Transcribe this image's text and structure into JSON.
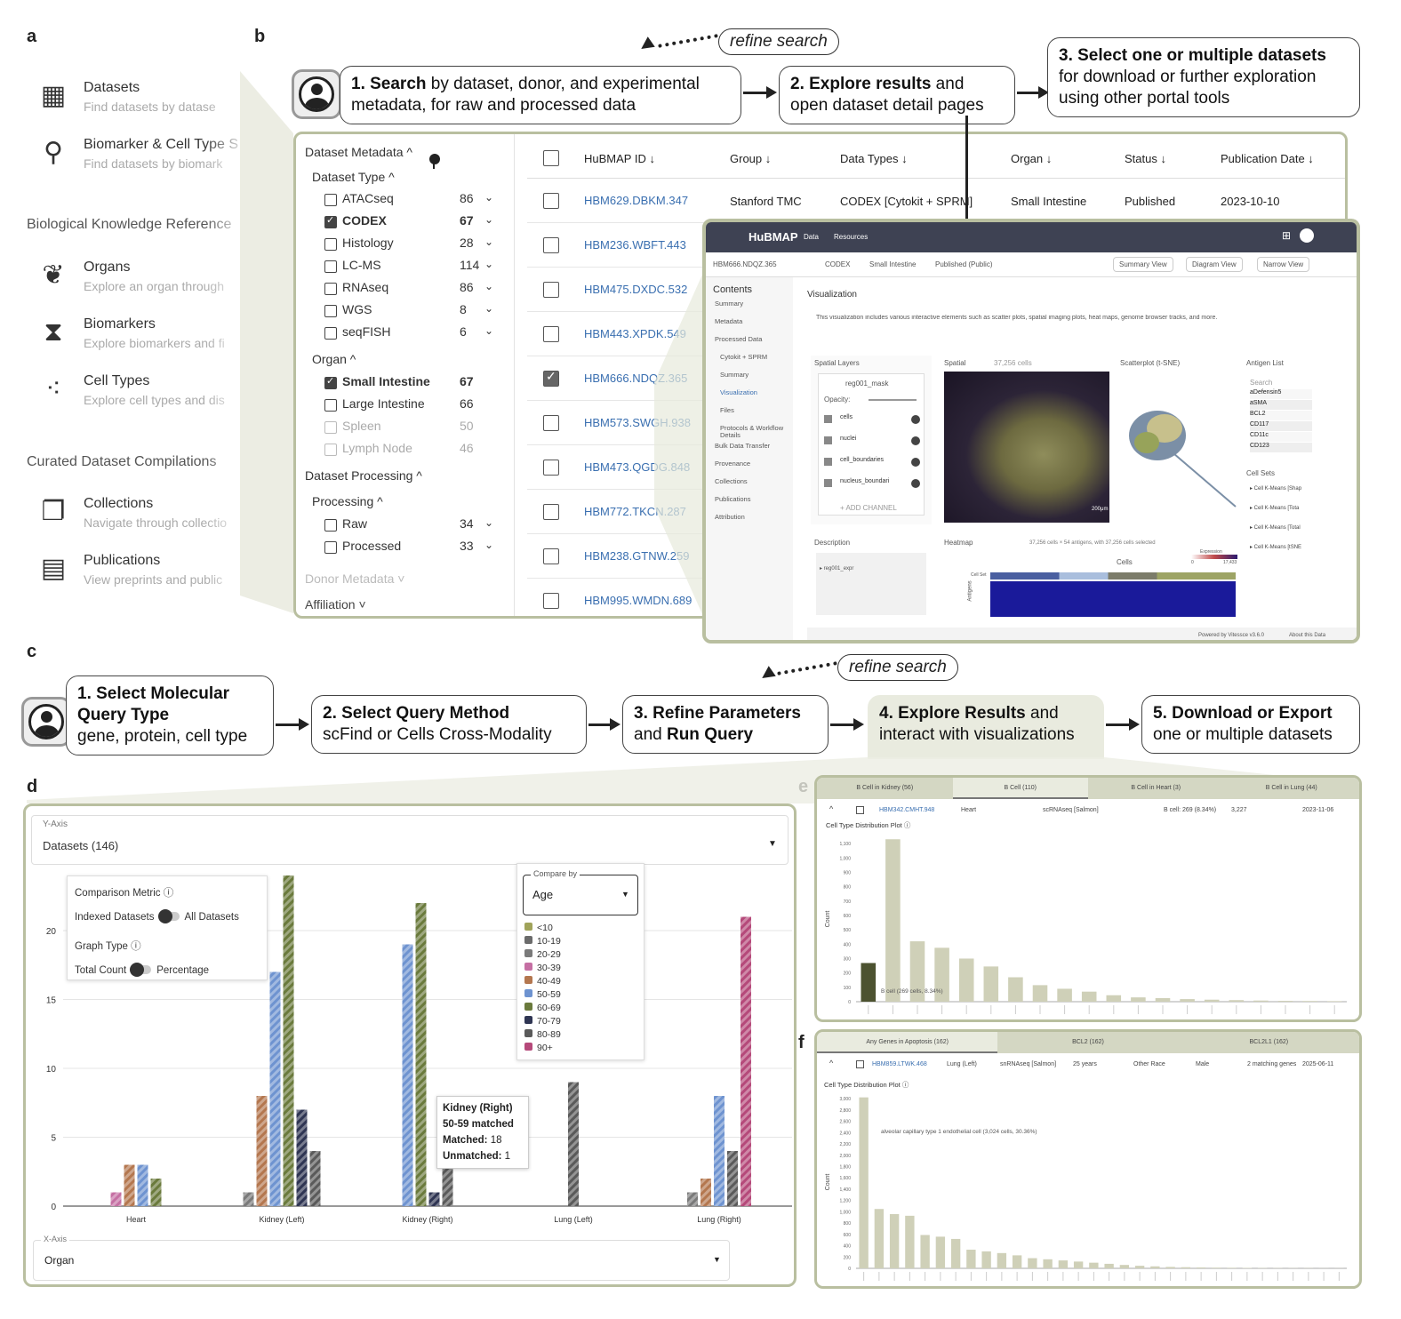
{
  "panels": {
    "a": "a",
    "b": "b",
    "c": "c",
    "d": "d",
    "e": "e",
    "f": "f"
  },
  "panel_a": {
    "items": [
      {
        "icon": "table-icon",
        "title": "Datasets",
        "sub": "Find datasets by datase"
      },
      {
        "icon": "search-icon",
        "title": "Biomarker & Cell Type S",
        "sub": "Find datasets by biomark"
      },
      {
        "icon": "kidney-icon",
        "title": "Organs",
        "sub": "Explore an organ through"
      },
      {
        "icon": "dna-icon",
        "title": "Biomarkers",
        "sub": "Explore biomarkers and fi"
      },
      {
        "icon": "cells-icon",
        "title": "Cell Types",
        "sub": "Explore cell types and dis"
      },
      {
        "icon": "collection-icon",
        "title": "Collections",
        "sub": "Navigate through collectio"
      },
      {
        "icon": "document-icon",
        "title": "Publications",
        "sub": "View preprints and public"
      }
    ],
    "sections": [
      "Biological Knowledge Reference",
      "Curated Dataset Compilations"
    ]
  },
  "flow_b": {
    "step1_bold": "1. Search",
    "step1_rest": " by dataset, donor, and experimental metadata, for raw and processed data",
    "step2_bold": "2. Explore results",
    "step2_rest": " and open dataset detail pages",
    "step3_bold": "3. Select one or multiple datasets",
    "step3_rest": "for download or further exploration using other portal tools",
    "refine": "refine search"
  },
  "facets": {
    "dataset_metadata": "Dataset Metadata ^",
    "dataset_type": "Dataset Type ^",
    "types": [
      {
        "label": "ATACseq",
        "count": "86",
        "checked": false
      },
      {
        "label": "CODEX",
        "count": "67",
        "checked": true
      },
      {
        "label": "Histology",
        "count": "28",
        "checked": false
      },
      {
        "label": "LC-MS",
        "count": "114",
        "checked": false
      },
      {
        "label": "RNAseq",
        "count": "86",
        "checked": false
      },
      {
        "label": "WGS",
        "count": "8",
        "checked": false
      },
      {
        "label": "seqFISH",
        "count": "6",
        "checked": false
      }
    ],
    "organ": "Organ ^",
    "organs": [
      {
        "label": "Small Intestine",
        "count": "67",
        "checked": true
      },
      {
        "label": "Large Intestine",
        "count": "66",
        "checked": false
      },
      {
        "label": "Spleen",
        "count": "50",
        "checked": false
      },
      {
        "label": "Lymph Node",
        "count": "46",
        "checked": false
      }
    ],
    "dataset_processing": "Dataset Processing ^",
    "processing": "Processing ^",
    "proc": [
      {
        "label": "Raw",
        "count": "34"
      },
      {
        "label": "Processed",
        "count": "33"
      }
    ],
    "donor": "Donor Metadata ˅",
    "affiliation": "Affiliation ˅"
  },
  "table": {
    "headers": [
      "HuBMAP ID ↓",
      "Group ↓",
      "Data Types ↓",
      "Organ ↓",
      "Status ↓",
      "Publication Date ↓"
    ],
    "first_row": [
      "HBM629.DBKM.347",
      "Stanford TMC",
      "CODEX [Cytokit + SPRM]",
      "Small Intestine",
      "Published",
      "2023-10-10"
    ],
    "ids": [
      "HBM629.DBKM.347",
      "HBM236.WBFT.443",
      "HBM475.DXDC.532",
      "HBM443.XPDK.549",
      "HBM666.NDQZ.365",
      "HBM573.SWGH.938",
      "HBM473.QGDG.848",
      "HBM772.TKCN.287",
      "HBM238.GTNW.259",
      "HBM995.WMDN.689"
    ],
    "checked_row": 4
  },
  "detail": {
    "brand": "HuBMAP",
    "nav": [
      "Data",
      "Resources"
    ],
    "id": "HBM666.NDQZ.365",
    "chips": [
      "CODEX",
      "Small Intestine",
      "Published (Public)"
    ],
    "views": [
      "Summary View",
      "Diagram View",
      "Narrow View"
    ],
    "contents": "Contents",
    "toc": [
      "Summary",
      "Metadata",
      "Processed Data",
      "Cytokit + SPRM",
      "Summary",
      "Visualization",
      "Files",
      "Protocols & Workflow Details",
      "Bulk Data Transfer",
      "Provenance",
      "Collections",
      "Publications",
      "Attribution"
    ],
    "vis_title": "Visualization",
    "vis_desc": "This visualization includes various interactive elements such as scatter plots, spatial imaging plots, heat maps, genome browser tracks, and more.",
    "spatial_layers": "Spatial Layers",
    "layer": "reg001_mask",
    "opacity": "Opacity:",
    "channels": [
      "cells",
      "nuclei",
      "cell_boundaries",
      "nucleus_boundari"
    ],
    "add_channel": "+ ADD CHANNEL",
    "spatial": "Spatial",
    "spatial_cells": "37,256 cells",
    "scatter": "Scatterplot (t-SNE)",
    "antigen": "Antigen List",
    "search": "Search",
    "antigens": [
      "aDefensin5",
      "aSMA",
      "BCL2",
      "CD117",
      "CD11c",
      "CD123"
    ],
    "cell_sets": "Cell Sets",
    "cell_set_items": [
      "Cell K-Means [Shap",
      "Cell K-Means [Tota",
      "Cell K-Means [Total",
      "Cell K-Means [tSNE"
    ],
    "description": "Description",
    "desc_item": "▸ reg001_expr",
    "heatmap": "Heatmap",
    "heatmap_info": "37,256 cells × 54 antigens, with 37,256 cells selected",
    "cells_label": "Cells",
    "antigens_label": "Antigens",
    "expression": "Expression",
    "expr_min": "0",
    "expr_max": "17,433",
    "cellset_label": "Cell Set",
    "scale": "200μm",
    "footer": "Powered by Vitessce v3.6.0",
    "about": "About this Data"
  },
  "flow_c": {
    "s1_bold": "1. Select Molecular Query Type",
    "s1_rest": "gene, protein, cell type",
    "s2_bold": "2. Select Query Method",
    "s2_rest": "scFind or Cells Cross-Modality",
    "s3_bold_a": "3. Refine Parameters",
    "s3_rest": "and ",
    "s3_bold_b": "Run Query",
    "s4_bold": "4. Explore Results",
    "s4_rest": " and interact with visualizations",
    "s5_bold": "5. Download or Export",
    "s5_rest": "one or multiple datasets",
    "refine": "refine search"
  },
  "panel_d": {
    "y_axis_label": "Y-Axis",
    "y_axis_value": "Datasets (146)",
    "x_axis_label": "X-Axis",
    "x_axis_value": "Organ",
    "comparison_metric": "Comparison Metric",
    "indexed": "Indexed Datasets",
    "all": "All Datasets",
    "graph_type": "Graph Type",
    "total": "Total Count",
    "percentage": "Percentage",
    "compare_by_label": "Compare by",
    "compare_by_value": "Age",
    "tooltip": {
      "title": "Kidney (Right)",
      "sub": "50-59 matched",
      "matched_label": "Matched:",
      "matched": "18",
      "unmatched_label": "Unmatched:",
      "unmatched": "1"
    }
  },
  "chart_data": [
    {
      "type": "bar",
      "categories": [
        "Heart",
        "Kidney (Left)",
        "Kidney (Right)",
        "Lung (Left)",
        "Lung (Right)"
      ],
      "yticks": [
        "0",
        "5",
        "10",
        "15",
        "20"
      ],
      "ylim": [
        0,
        24
      ],
      "series": [
        {
          "name": "<10",
          "color": "#a0a35a",
          "values": [
            0,
            0,
            0,
            0,
            0
          ]
        },
        {
          "name": "10-19",
          "color": "#6b6b6b",
          "values": [
            0,
            0,
            0,
            0,
            0
          ]
        },
        {
          "name": "20-29",
          "color": "#7a7a7a",
          "values": [
            0,
            1,
            0,
            0,
            1
          ]
        },
        {
          "name": "30-39",
          "color": "#c56fa3",
          "values": [
            1,
            0,
            0,
            0,
            0
          ]
        },
        {
          "name": "40-49",
          "color": "#b4774f",
          "values": [
            3,
            8,
            0,
            0,
            2
          ]
        },
        {
          "name": "50-59",
          "color": "#6e93d0",
          "values": [
            3,
            17,
            19,
            0,
            8
          ]
        },
        {
          "name": "60-69",
          "color": "#6a7a3c",
          "values": [
            2,
            24,
            22,
            0,
            0
          ]
        },
        {
          "name": "70-79",
          "color": "#2f3553",
          "values": [
            0,
            7,
            1,
            0,
            0
          ]
        },
        {
          "name": "80-89",
          "color": "#5a5a5a",
          "values": [
            0,
            4,
            5,
            9,
            4
          ]
        },
        {
          "name": "90+",
          "color": "#b5497a",
          "values": [
            0,
            0,
            0,
            0,
            21
          ]
        }
      ]
    },
    {
      "type": "bar",
      "tabs": [
        "B Cell in Kidney (56)",
        "B Cell (110)",
        "B Cell in Heart (3)",
        "B Cell in Lung (44)"
      ],
      "row": [
        "HBM342.CMHT.948",
        "Heart",
        "scRNAseq [Salmon]",
        "B cell: 269 (8.34%)",
        "3,227",
        "2023-11-06"
      ],
      "title": "Cell Type Distribution Plot",
      "ylabel": "Count",
      "yticks": [
        "100",
        "200",
        "300",
        "400",
        "500",
        "600",
        "700",
        "800",
        "900",
        "1,000",
        "1,100"
      ],
      "ylim": [
        0,
        1150
      ],
      "values": [
        269,
        1130,
        420,
        375,
        300,
        245,
        170,
        115,
        90,
        70,
        45,
        30,
        25,
        18,
        14,
        11,
        8,
        6,
        5,
        4
      ],
      "annotation": "B cell (269 cells, 8.34%)"
    },
    {
      "type": "bar",
      "tabs": [
        "Any Genes in Apoptosis (162)",
        "BCL2 (162)",
        "BCL2L1 (162)"
      ],
      "row": [
        "HBM859.LTWK.468",
        "Lung (Left)",
        "snRNAseq [Salmon]",
        "25 years",
        "Other Race",
        "Male",
        "2 matching genes",
        "2025-06-11"
      ],
      "title": "Cell Type Distribution Plot",
      "ylabel": "Count",
      "yticks": [
        "200",
        "400",
        "600",
        "800",
        "1,000",
        "1,200",
        "1,400",
        "1,600",
        "1,800",
        "2,000",
        "2,200",
        "2,400",
        "2,600",
        "2,800",
        "3,000"
      ],
      "ylim": [
        0,
        3050
      ],
      "values": [
        3024,
        1050,
        960,
        930,
        590,
        560,
        520,
        330,
        300,
        270,
        230,
        180,
        160,
        140,
        120,
        100,
        80,
        60,
        45,
        35,
        25,
        20,
        15,
        12,
        10,
        8,
        6,
        5,
        4,
        3,
        2,
        2
      ],
      "annotation": "alveolar capillary type 1 endothelial cell (3,024 cells, 30.36%)"
    }
  ]
}
